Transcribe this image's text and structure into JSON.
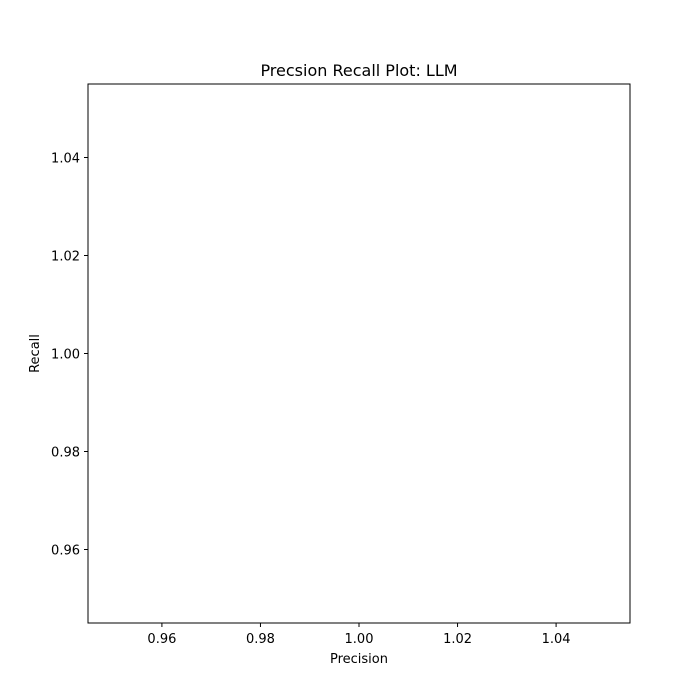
{
  "chart_data": {
    "type": "scatter",
    "title": "Precsion Recall Plot: LLM",
    "xlabel": "Precision",
    "ylabel": "Recall",
    "xlim": [
      0.945,
      1.055
    ],
    "ylim": [
      0.945,
      1.055
    ],
    "xticks": [
      0.96,
      0.98,
      1.0,
      1.02,
      1.04
    ],
    "yticks": [
      0.96,
      0.98,
      1.0,
      1.02,
      1.04
    ],
    "xtick_labels": [
      "0.96",
      "0.98",
      "1.00",
      "1.02",
      "1.04"
    ],
    "ytick_labels": [
      "0.96",
      "0.98",
      "1.00",
      "1.02",
      "1.04"
    ],
    "series": [],
    "grid": false,
    "legend": "none"
  }
}
